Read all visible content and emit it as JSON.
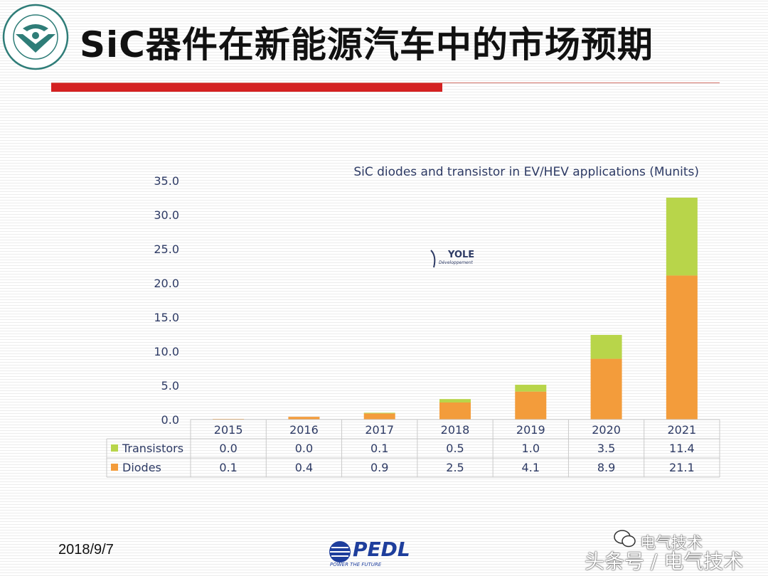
{
  "slide": {
    "title": "SiC器件在新能源汽车中的市场预期",
    "footer_date": "2018/9/7",
    "watermark_top": "电气技术",
    "watermark_bottom": "头条号 / 电气技术"
  },
  "colors": {
    "accent_red": "#d42121",
    "transistors": "#b8d54a",
    "diodes": "#f39c3b",
    "axis_text": "#2d3a64"
  },
  "chart_data": {
    "type": "bar",
    "stacked": true,
    "title": "SiC diodes and transistor in EV/HEV applications (Munits)",
    "watermark_text": "YOLE",
    "watermark_subtext": "Développement",
    "categories": [
      "2015",
      "2016",
      "2017",
      "2018",
      "2019",
      "2020",
      "2021"
    ],
    "series": [
      {
        "name": "Diodes",
        "color": "#f39c3b",
        "values": [
          0.1,
          0.4,
          0.9,
          2.5,
          4.1,
          8.9,
          21.1
        ]
      },
      {
        "name": "Transistors",
        "color": "#b8d54a",
        "values": [
          0.0,
          0.0,
          0.1,
          0.5,
          1.0,
          3.5,
          11.4
        ]
      }
    ],
    "table_rows": [
      {
        "name": "Transistors",
        "color": "#b8d54a",
        "values": [
          "0.0",
          "0.0",
          "0.1",
          "0.5",
          "1.0",
          "3.5",
          "11.4"
        ]
      },
      {
        "name": "Diodes",
        "color": "#f39c3b",
        "values": [
          "0.1",
          "0.4",
          "0.9",
          "2.5",
          "4.1",
          "8.9",
          "21.1"
        ]
      }
    ],
    "ylim": [
      0,
      35
    ],
    "yticks": [
      "0.0",
      "5.0",
      "10.0",
      "15.0",
      "20.0",
      "25.0",
      "30.0",
      "35.0"
    ],
    "grid": false,
    "legend": "data-table"
  }
}
